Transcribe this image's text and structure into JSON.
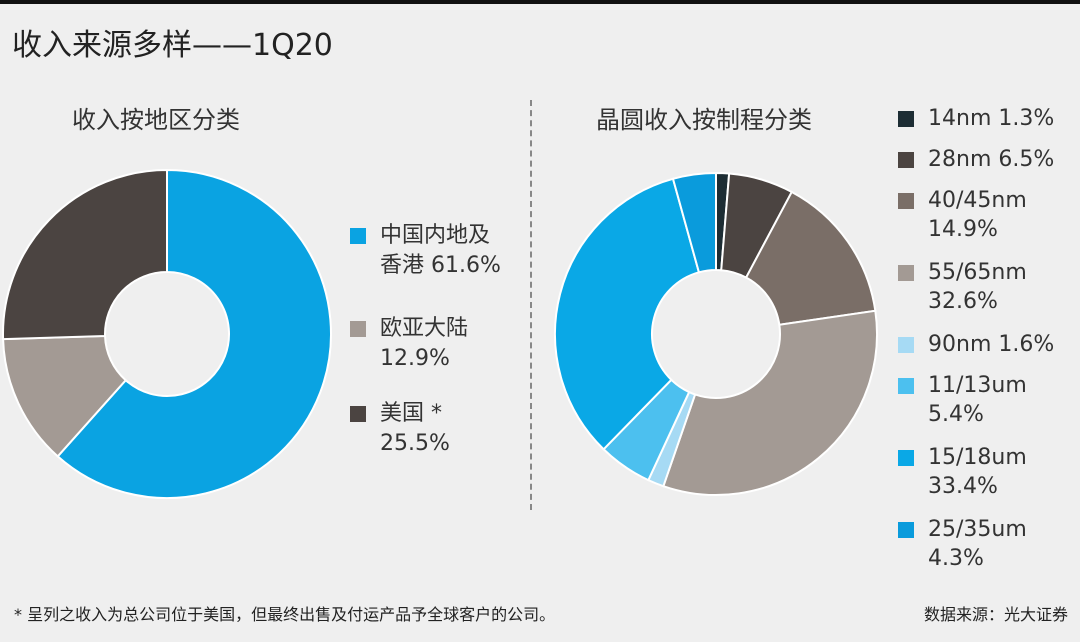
{
  "title": "收入来源多样——1Q20",
  "footnote": "* 呈列之收入为总公司位于美国，但最终出售及付运产品予全球客户的公司。",
  "source": "数据来源：光大证券",
  "chart_data": [
    {
      "type": "pie",
      "title": "收入按地区分类",
      "series": [
        {
          "name": "中国内地及香港",
          "value": 61.6,
          "label": "中国内地及\n香港 61.6%",
          "color": "#0aa3e2"
        },
        {
          "name": "欧亚大陆",
          "value": 12.9,
          "label": "欧亚大陆\n12.9%",
          "color": "#a39a94"
        },
        {
          "name": "美国 *",
          "value": 25.5,
          "label": "美国 *\n25.5%",
          "color": "#4b4441"
        }
      ]
    },
    {
      "type": "pie",
      "title": "晶圆收入按制程分类",
      "series": [
        {
          "name": "14nm",
          "value": 1.3,
          "label": "14nm 1.3%",
          "color": "#1d2d34"
        },
        {
          "name": "28nm",
          "value": 6.5,
          "label": "28nm 6.5%",
          "color": "#4b4441"
        },
        {
          "name": "40/45nm",
          "value": 14.9,
          "label": "40/45nm\n14.9%",
          "color": "#7a6e67"
        },
        {
          "name": "55/65nm",
          "value": 32.6,
          "label": "55/65nm\n32.6%",
          "color": "#a39a94"
        },
        {
          "name": "90nm",
          "value": 1.6,
          "label": "90nm 1.6%",
          "color": "#a6daf4"
        },
        {
          "name": "11/13um",
          "value": 5.4,
          "label": "11/13um\n5.4%",
          "color": "#4cc0ef"
        },
        {
          "name": "15/18um",
          "value": 33.4,
          "label": "15/18um\n33.4%",
          "color": "#0aa8e6"
        },
        {
          "name": "25/35um",
          "value": 4.3,
          "label": "25/35um\n4.3%",
          "color": "#0a9bdc"
        }
      ]
    }
  ]
}
